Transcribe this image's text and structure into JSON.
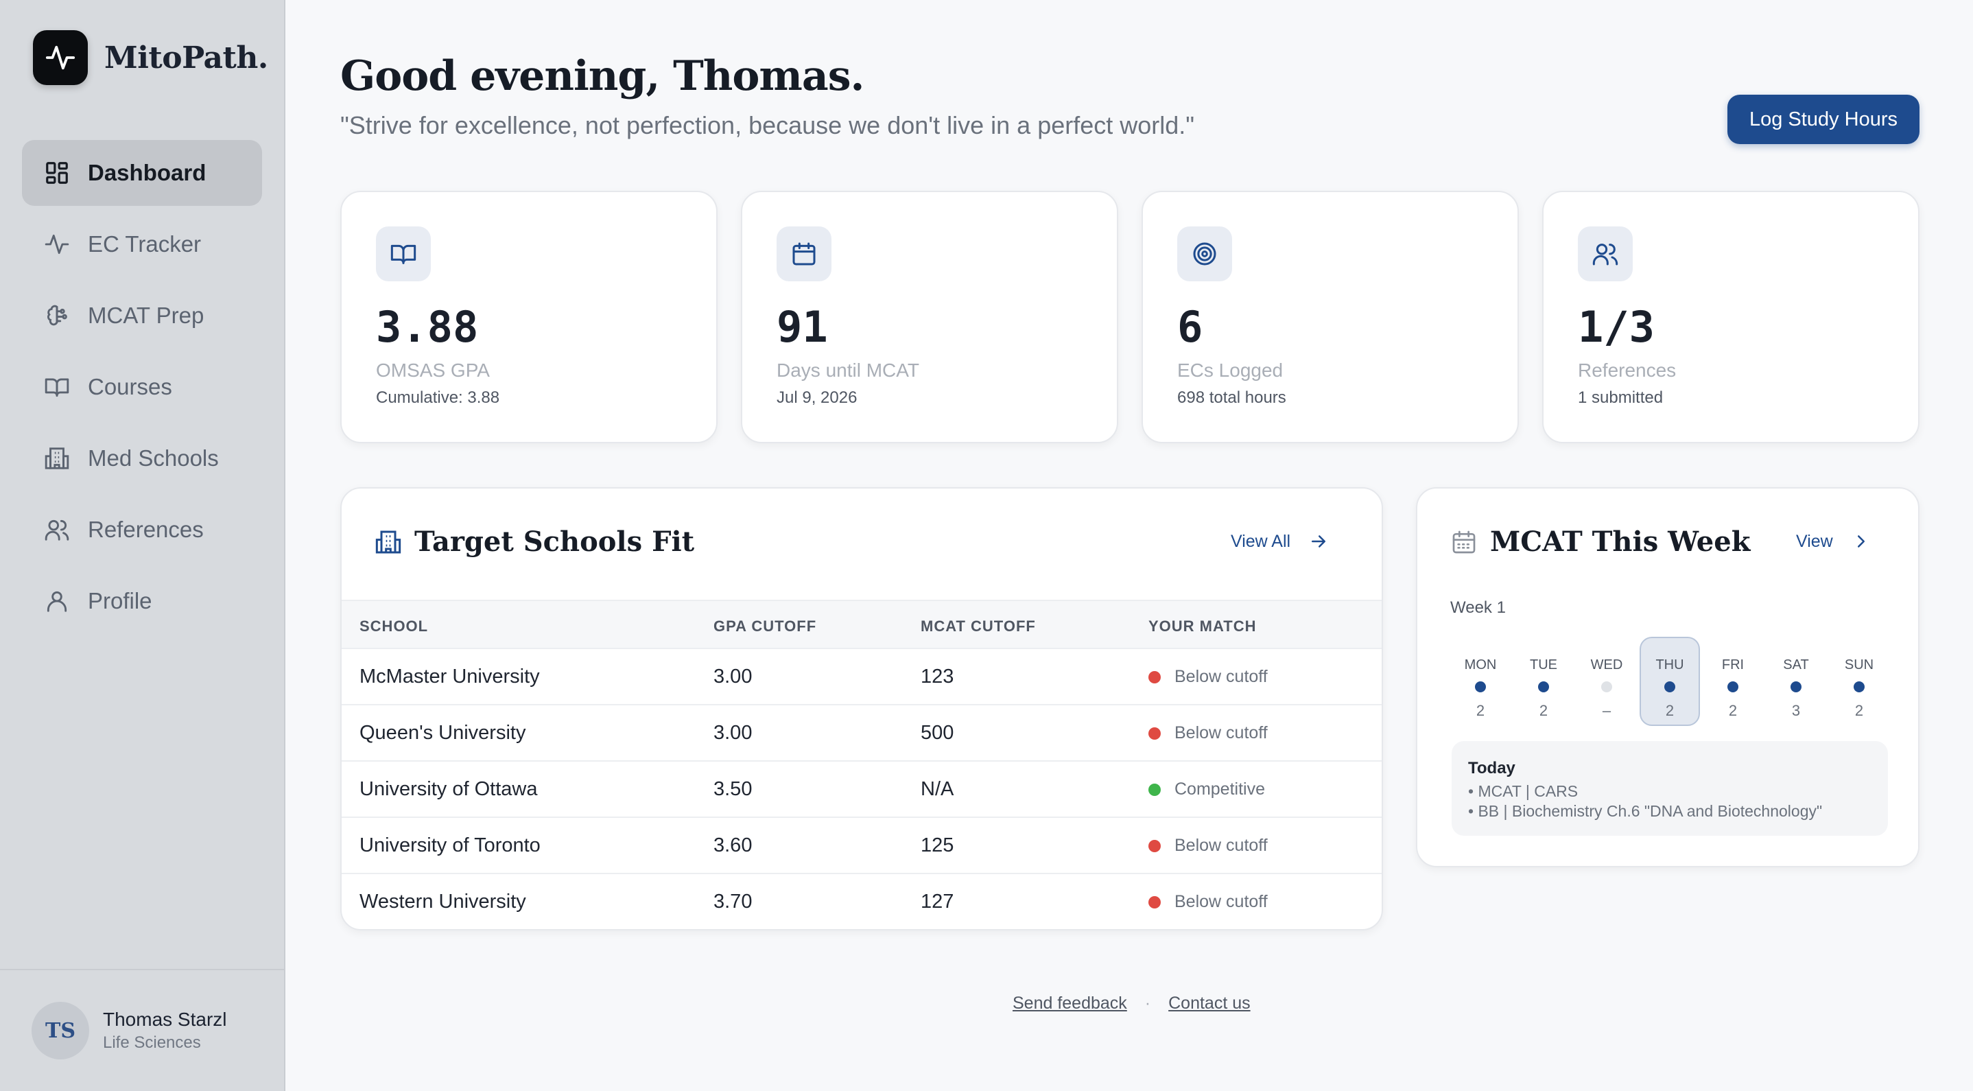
{
  "brand": {
    "name": "MitoPath."
  },
  "nav": [
    {
      "label": "Dashboard",
      "icon": "dashboard-icon",
      "active": true
    },
    {
      "label": "EC Tracker",
      "icon": "activity-icon"
    },
    {
      "label": "MCAT Prep",
      "icon": "brain-icon"
    },
    {
      "label": "Courses",
      "icon": "book-icon"
    },
    {
      "label": "Med Schools",
      "icon": "building-icon"
    },
    {
      "label": "References",
      "icon": "users-icon"
    },
    {
      "label": "Profile",
      "icon": "user-icon"
    }
  ],
  "user": {
    "initials": "TS",
    "name": "Thomas Starzl",
    "program": "Life Sciences"
  },
  "header": {
    "greeting": "Good evening, Thomas.",
    "quote": "\"Strive for excellence, not perfection, because we don't live in a perfect world.\"",
    "log_button": "Log Study Hours"
  },
  "stats": [
    {
      "value": "3.88",
      "label": "OMSAS GPA",
      "sub": "Cumulative: 3.88",
      "icon": "open-book-icon"
    },
    {
      "value": "91",
      "label": "Days until MCAT",
      "sub": "Jul 9, 2026",
      "icon": "calendar-icon"
    },
    {
      "value": "6",
      "label": "ECs Logged",
      "sub": "698 total hours",
      "icon": "target-icon"
    },
    {
      "value": "1/3",
      "label": "References",
      "sub": "1 submitted",
      "icon": "users-icon"
    }
  ],
  "schools": {
    "title": "Target Schools Fit",
    "view_all": "View All",
    "columns": [
      "SCHOOL",
      "GPA CUTOFF",
      "MCAT CUTOFF",
      "YOUR MATCH"
    ],
    "rows": [
      {
        "school": "McMaster University",
        "gpa": "3.00",
        "mcat": "123",
        "match": "Below cutoff",
        "status": "below"
      },
      {
        "school": "Queen's University",
        "gpa": "3.00",
        "mcat": "500",
        "match": "Below cutoff",
        "status": "below"
      },
      {
        "school": "University of Ottawa",
        "gpa": "3.50",
        "mcat": "N/A",
        "match": "Competitive",
        "status": "competitive"
      },
      {
        "school": "University of Toronto",
        "gpa": "3.60",
        "mcat": "125",
        "match": "Below cutoff",
        "status": "below"
      },
      {
        "school": "Western University",
        "gpa": "3.70",
        "mcat": "127",
        "match": "Below cutoff",
        "status": "below"
      }
    ]
  },
  "mcat_week": {
    "title": "MCAT This Week",
    "view": "View",
    "week_label": "Week 1",
    "days": [
      {
        "name": "MON",
        "count": "2",
        "active": true
      },
      {
        "name": "TUE",
        "count": "2",
        "active": true
      },
      {
        "name": "WED",
        "count": "–",
        "active": false
      },
      {
        "name": "THU",
        "count": "2",
        "active": true,
        "today": true
      },
      {
        "name": "FRI",
        "count": "2",
        "active": true
      },
      {
        "name": "SAT",
        "count": "3",
        "active": true
      },
      {
        "name": "SUN",
        "count": "2",
        "active": true
      }
    ],
    "today": {
      "title": "Today",
      "items": [
        "• MCAT | CARS",
        "• BB | Biochemistry Ch.6 \"DNA and Biotechnology\""
      ]
    }
  },
  "footer": {
    "feedback": "Send feedback",
    "separator": "·",
    "contact": "Contact us"
  },
  "colors": {
    "accent": "#1e4b8e",
    "below": "#df4a42",
    "competitive": "#3fb54b",
    "inactive_dot": "#dfe2e6"
  }
}
